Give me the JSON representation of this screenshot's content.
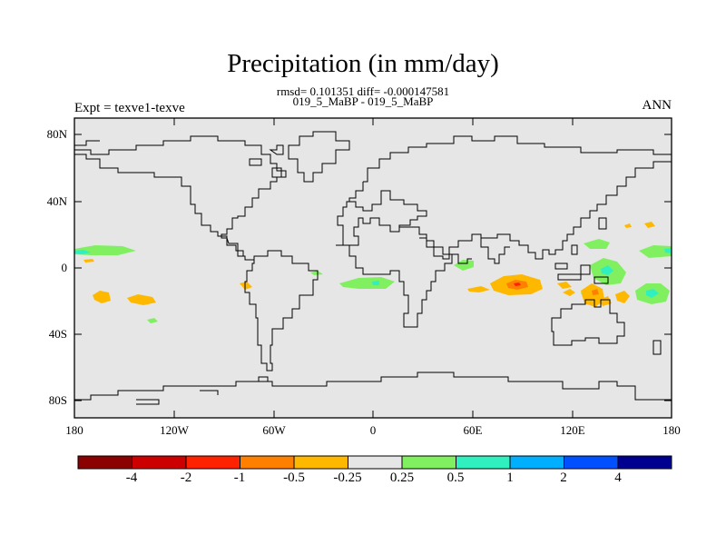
{
  "title": "Precipitation (in mm/day)",
  "stats": "rmsd= 0.101351 diff= -0.000147581",
  "subtitle": "019_5_MaBP - 019_5_MaBP",
  "left_label": "Expt = texve1-texve",
  "right_label": "ANN",
  "map": {
    "y_ticks": [
      "80N",
      "40N",
      "0",
      "40S",
      "80S"
    ],
    "x_ticks": [
      "180",
      "120W",
      "60W",
      "0",
      "60E",
      "120E",
      "180"
    ],
    "background_color": "#e6e6e6",
    "coastline_color": "#000000"
  },
  "colorbar": {
    "colors": [
      "#8b0000",
      "#cc0000",
      "#ff2200",
      "#ff7f00",
      "#ffb800",
      "#e6e6e6",
      "#80f060",
      "#30f0c0",
      "#00b0ff",
      "#0050ff",
      "#000090"
    ],
    "labels": [
      "-4",
      "-2",
      "-1",
      "-0.5",
      "-0.25",
      "0.25",
      "0.5",
      "1",
      "2",
      "4"
    ]
  }
}
